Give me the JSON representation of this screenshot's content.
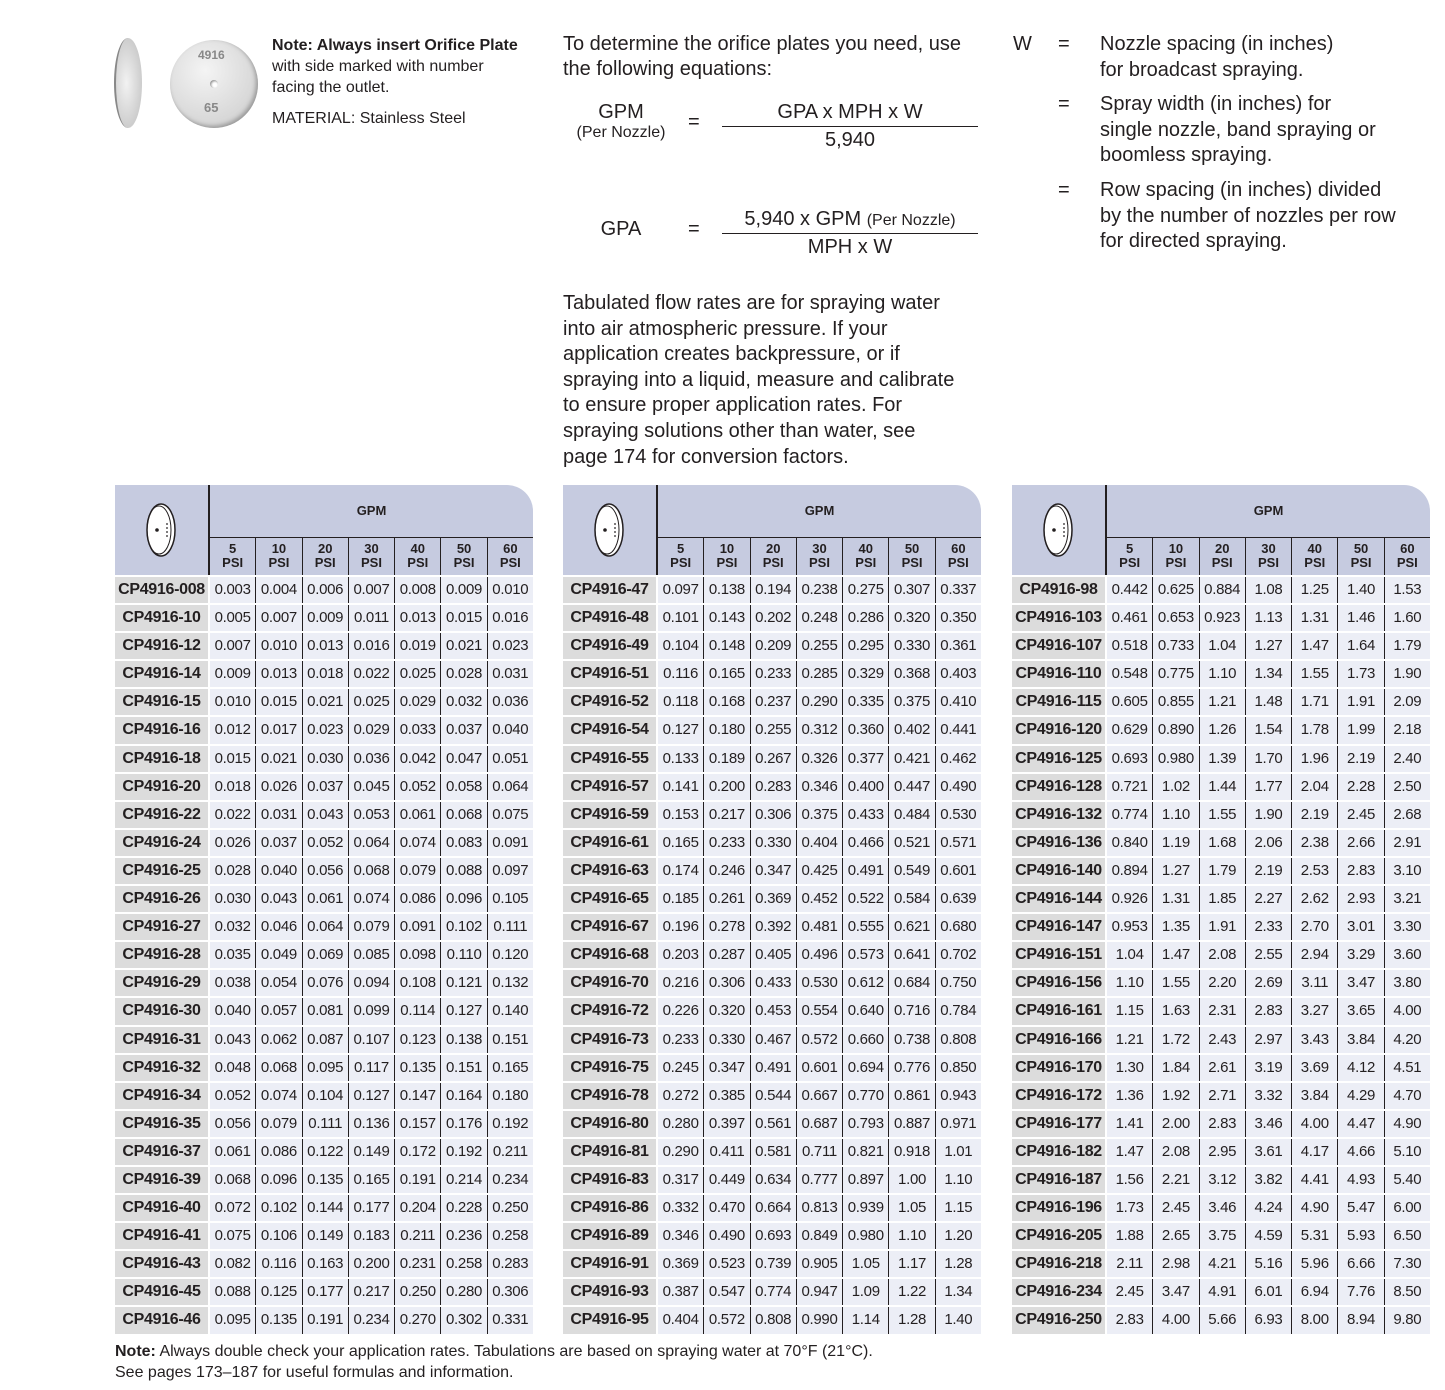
{
  "note": {
    "bold": "Note: Always insert Orifice Plate",
    "rest": " with side marked with number facing the outlet.",
    "material": "MATERIAL: Stainless Steel"
  },
  "plate_image": {
    "marking_top": "4916",
    "marking_bottom": "65"
  },
  "intro": "To determine the orifice plates you need, use the following equations:",
  "equations": {
    "gpm": {
      "lhs": "GPM",
      "lhs_sub": "(Per Nozzle)",
      "eq": "=",
      "numerator": "GPA x MPH x W",
      "denominator": "5,940"
    },
    "gpa": {
      "lhs": "GPA",
      "eq": "=",
      "numerator": "5,940 x GPM",
      "numerator_sub": "(Per Nozzle)",
      "denominator": "MPH x W"
    }
  },
  "w_definitions": {
    "symbol": "W",
    "items": [
      {
        "eq": "=",
        "text": "Nozzle spacing (in inches) for broadcast spraying."
      },
      {
        "eq": "=",
        "text": "Spray width (in inches) for single nozzle, band spraying or boomless spraying."
      },
      {
        "eq": "=",
        "text": "Row spacing (in inches) divided by the number of nozzles per row for directed spraying."
      }
    ]
  },
  "paragraph": "Tabulated flow rates are for spraying water into air atmospheric pressure. If your application creates backpressure, or if spraying into a liquid, measure and calibrate to ensure proper application rates. For spraying solutions other than water, see page 174 for conversion factors.",
  "colors": {
    "header_bg": "#c6cbe0",
    "part_cell_bg": "#dcdcdc",
    "value_cell_bg": "#eceef6"
  },
  "table_header": {
    "gpm": "GPM",
    "psi_columns": [
      "5 PSI",
      "10 PSI",
      "20 PSI",
      "30 PSI",
      "40 PSI",
      "50 PSI",
      "60 PSI"
    ],
    "icon": "orifice-plate-icon"
  },
  "tables": [
    {
      "rows": [
        [
          "CP4916-008",
          "0.003",
          "0.004",
          "0.006",
          "0.007",
          "0.008",
          "0.009",
          "0.010"
        ],
        [
          "CP4916-10",
          "0.005",
          "0.007",
          "0.009",
          "0.011",
          "0.013",
          "0.015",
          "0.016"
        ],
        [
          "CP4916-12",
          "0.007",
          "0.010",
          "0.013",
          "0.016",
          "0.019",
          "0.021",
          "0.023"
        ],
        [
          "CP4916-14",
          "0.009",
          "0.013",
          "0.018",
          "0.022",
          "0.025",
          "0.028",
          "0.031"
        ],
        [
          "CP4916-15",
          "0.010",
          "0.015",
          "0.021",
          "0.025",
          "0.029",
          "0.032",
          "0.036"
        ],
        [
          "CP4916-16",
          "0.012",
          "0.017",
          "0.023",
          "0.029",
          "0.033",
          "0.037",
          "0.040"
        ],
        [
          "CP4916-18",
          "0.015",
          "0.021",
          "0.030",
          "0.036",
          "0.042",
          "0.047",
          "0.051"
        ],
        [
          "CP4916-20",
          "0.018",
          "0.026",
          "0.037",
          "0.045",
          "0.052",
          "0.058",
          "0.064"
        ],
        [
          "CP4916-22",
          "0.022",
          "0.031",
          "0.043",
          "0.053",
          "0.061",
          "0.068",
          "0.075"
        ],
        [
          "CP4916-24",
          "0.026",
          "0.037",
          "0.052",
          "0.064",
          "0.074",
          "0.083",
          "0.091"
        ],
        [
          "CP4916-25",
          "0.028",
          "0.040",
          "0.056",
          "0.068",
          "0.079",
          "0.088",
          "0.097"
        ],
        [
          "CP4916-26",
          "0.030",
          "0.043",
          "0.061",
          "0.074",
          "0.086",
          "0.096",
          "0.105"
        ],
        [
          "CP4916-27",
          "0.032",
          "0.046",
          "0.064",
          "0.079",
          "0.091",
          "0.102",
          "0.111"
        ],
        [
          "CP4916-28",
          "0.035",
          "0.049",
          "0.069",
          "0.085",
          "0.098",
          "0.110",
          "0.120"
        ],
        [
          "CP4916-29",
          "0.038",
          "0.054",
          "0.076",
          "0.094",
          "0.108",
          "0.121",
          "0.132"
        ],
        [
          "CP4916-30",
          "0.040",
          "0.057",
          "0.081",
          "0.099",
          "0.114",
          "0.127",
          "0.140"
        ],
        [
          "CP4916-31",
          "0.043",
          "0.062",
          "0.087",
          "0.107",
          "0.123",
          "0.138",
          "0.151"
        ],
        [
          "CP4916-32",
          "0.048",
          "0.068",
          "0.095",
          "0.117",
          "0.135",
          "0.151",
          "0.165"
        ],
        [
          "CP4916-34",
          "0.052",
          "0.074",
          "0.104",
          "0.127",
          "0.147",
          "0.164",
          "0.180"
        ],
        [
          "CP4916-35",
          "0.056",
          "0.079",
          "0.111",
          "0.136",
          "0.157",
          "0.176",
          "0.192"
        ],
        [
          "CP4916-37",
          "0.061",
          "0.086",
          "0.122",
          "0.149",
          "0.172",
          "0.192",
          "0.211"
        ],
        [
          "CP4916-39",
          "0.068",
          "0.096",
          "0.135",
          "0.165",
          "0.191",
          "0.214",
          "0.234"
        ],
        [
          "CP4916-40",
          "0.072",
          "0.102",
          "0.144",
          "0.177",
          "0.204",
          "0.228",
          "0.250"
        ],
        [
          "CP4916-41",
          "0.075",
          "0.106",
          "0.149",
          "0.183",
          "0.211",
          "0.236",
          "0.258"
        ],
        [
          "CP4916-43",
          "0.082",
          "0.116",
          "0.163",
          "0.200",
          "0.231",
          "0.258",
          "0.283"
        ],
        [
          "CP4916-45",
          "0.088",
          "0.125",
          "0.177",
          "0.217",
          "0.250",
          "0.280",
          "0.306"
        ],
        [
          "CP4916-46",
          "0.095",
          "0.135",
          "0.191",
          "0.234",
          "0.270",
          "0.302",
          "0.331"
        ]
      ]
    },
    {
      "rows": [
        [
          "CP4916-47",
          "0.097",
          "0.138",
          "0.194",
          "0.238",
          "0.275",
          "0.307",
          "0.337"
        ],
        [
          "CP4916-48",
          "0.101",
          "0.143",
          "0.202",
          "0.248",
          "0.286",
          "0.320",
          "0.350"
        ],
        [
          "CP4916-49",
          "0.104",
          "0.148",
          "0.209",
          "0.255",
          "0.295",
          "0.330",
          "0.361"
        ],
        [
          "CP4916-51",
          "0.116",
          "0.165",
          "0.233",
          "0.285",
          "0.329",
          "0.368",
          "0.403"
        ],
        [
          "CP4916-52",
          "0.118",
          "0.168",
          "0.237",
          "0.290",
          "0.335",
          "0.375",
          "0.410"
        ],
        [
          "CP4916-54",
          "0.127",
          "0.180",
          "0.255",
          "0.312",
          "0.360",
          "0.402",
          "0.441"
        ],
        [
          "CP4916-55",
          "0.133",
          "0.189",
          "0.267",
          "0.326",
          "0.377",
          "0.421",
          "0.462"
        ],
        [
          "CP4916-57",
          "0.141",
          "0.200",
          "0.283",
          "0.346",
          "0.400",
          "0.447",
          "0.490"
        ],
        [
          "CP4916-59",
          "0.153",
          "0.217",
          "0.306",
          "0.375",
          "0.433",
          "0.484",
          "0.530"
        ],
        [
          "CP4916-61",
          "0.165",
          "0.233",
          "0.330",
          "0.404",
          "0.466",
          "0.521",
          "0.571"
        ],
        [
          "CP4916-63",
          "0.174",
          "0.246",
          "0.347",
          "0.425",
          "0.491",
          "0.549",
          "0.601"
        ],
        [
          "CP4916-65",
          "0.185",
          "0.261",
          "0.369",
          "0.452",
          "0.522",
          "0.584",
          "0.639"
        ],
        [
          "CP4916-67",
          "0.196",
          "0.278",
          "0.392",
          "0.481",
          "0.555",
          "0.621",
          "0.680"
        ],
        [
          "CP4916-68",
          "0.203",
          "0.287",
          "0.405",
          "0.496",
          "0.573",
          "0.641",
          "0.702"
        ],
        [
          "CP4916-70",
          "0.216",
          "0.306",
          "0.433",
          "0.530",
          "0.612",
          "0.684",
          "0.750"
        ],
        [
          "CP4916-72",
          "0.226",
          "0.320",
          "0.453",
          "0.554",
          "0.640",
          "0.716",
          "0.784"
        ],
        [
          "CP4916-73",
          "0.233",
          "0.330",
          "0.467",
          "0.572",
          "0.660",
          "0.738",
          "0.808"
        ],
        [
          "CP4916-75",
          "0.245",
          "0.347",
          "0.491",
          "0.601",
          "0.694",
          "0.776",
          "0.850"
        ],
        [
          "CP4916-78",
          "0.272",
          "0.385",
          "0.544",
          "0.667",
          "0.770",
          "0.861",
          "0.943"
        ],
        [
          "CP4916-80",
          "0.280",
          "0.397",
          "0.561",
          "0.687",
          "0.793",
          "0.887",
          "0.971"
        ],
        [
          "CP4916-81",
          "0.290",
          "0.411",
          "0.581",
          "0.711",
          "0.821",
          "0.918",
          "1.01"
        ],
        [
          "CP4916-83",
          "0.317",
          "0.449",
          "0.634",
          "0.777",
          "0.897",
          "1.00",
          "1.10"
        ],
        [
          "CP4916-86",
          "0.332",
          "0.470",
          "0.664",
          "0.813",
          "0.939",
          "1.05",
          "1.15"
        ],
        [
          "CP4916-89",
          "0.346",
          "0.490",
          "0.693",
          "0.849",
          "0.980",
          "1.10",
          "1.20"
        ],
        [
          "CP4916-91",
          "0.369",
          "0.523",
          "0.739",
          "0.905",
          "1.05",
          "1.17",
          "1.28"
        ],
        [
          "CP4916-93",
          "0.387",
          "0.547",
          "0.774",
          "0.947",
          "1.09",
          "1.22",
          "1.34"
        ],
        [
          "CP4916-95",
          "0.404",
          "0.572",
          "0.808",
          "0.990",
          "1.14",
          "1.28",
          "1.40"
        ]
      ]
    },
    {
      "rows": [
        [
          "CP4916-98",
          "0.442",
          "0.625",
          "0.884",
          "1.08",
          "1.25",
          "1.40",
          "1.53"
        ],
        [
          "CP4916-103",
          "0.461",
          "0.653",
          "0.923",
          "1.13",
          "1.31",
          "1.46",
          "1.60"
        ],
        [
          "CP4916-107",
          "0.518",
          "0.733",
          "1.04",
          "1.27",
          "1.47",
          "1.64",
          "1.79"
        ],
        [
          "CP4916-110",
          "0.548",
          "0.775",
          "1.10",
          "1.34",
          "1.55",
          "1.73",
          "1.90"
        ],
        [
          "CP4916-115",
          "0.605",
          "0.855",
          "1.21",
          "1.48",
          "1.71",
          "1.91",
          "2.09"
        ],
        [
          "CP4916-120",
          "0.629",
          "0.890",
          "1.26",
          "1.54",
          "1.78",
          "1.99",
          "2.18"
        ],
        [
          "CP4916-125",
          "0.693",
          "0.980",
          "1.39",
          "1.70",
          "1.96",
          "2.19",
          "2.40"
        ],
        [
          "CP4916-128",
          "0.721",
          "1.02",
          "1.44",
          "1.77",
          "2.04",
          "2.28",
          "2.50"
        ],
        [
          "CP4916-132",
          "0.774",
          "1.10",
          "1.55",
          "1.90",
          "2.19",
          "2.45",
          "2.68"
        ],
        [
          "CP4916-136",
          "0.840",
          "1.19",
          "1.68",
          "2.06",
          "2.38",
          "2.66",
          "2.91"
        ],
        [
          "CP4916-140",
          "0.894",
          "1.27",
          "1.79",
          "2.19",
          "2.53",
          "2.83",
          "3.10"
        ],
        [
          "CP4916-144",
          "0.926",
          "1.31",
          "1.85",
          "2.27",
          "2.62",
          "2.93",
          "3.21"
        ],
        [
          "CP4916-147",
          "0.953",
          "1.35",
          "1.91",
          "2.33",
          "2.70",
          "3.01",
          "3.30"
        ],
        [
          "CP4916-151",
          "1.04",
          "1.47",
          "2.08",
          "2.55",
          "2.94",
          "3.29",
          "3.60"
        ],
        [
          "CP4916-156",
          "1.10",
          "1.55",
          "2.20",
          "2.69",
          "3.11",
          "3.47",
          "3.80"
        ],
        [
          "CP4916-161",
          "1.15",
          "1.63",
          "2.31",
          "2.83",
          "3.27",
          "3.65",
          "4.00"
        ],
        [
          "CP4916-166",
          "1.21",
          "1.72",
          "2.43",
          "2.97",
          "3.43",
          "3.84",
          "4.20"
        ],
        [
          "CP4916-170",
          "1.30",
          "1.84",
          "2.61",
          "3.19",
          "3.69",
          "4.12",
          "4.51"
        ],
        [
          "CP4916-172",
          "1.36",
          "1.92",
          "2.71",
          "3.32",
          "3.84",
          "4.29",
          "4.70"
        ],
        [
          "CP4916-177",
          "1.41",
          "2.00",
          "2.83",
          "3.46",
          "4.00",
          "4.47",
          "4.90"
        ],
        [
          "CP4916-182",
          "1.47",
          "2.08",
          "2.95",
          "3.61",
          "4.17",
          "4.66",
          "5.10"
        ],
        [
          "CP4916-187",
          "1.56",
          "2.21",
          "3.12",
          "3.82",
          "4.41",
          "4.93",
          "5.40"
        ],
        [
          "CP4916-196",
          "1.73",
          "2.45",
          "3.46",
          "4.24",
          "4.90",
          "5.47",
          "6.00"
        ],
        [
          "CP4916-205",
          "1.88",
          "2.65",
          "3.75",
          "4.59",
          "5.31",
          "5.93",
          "6.50"
        ],
        [
          "CP4916-218",
          "2.11",
          "2.98",
          "4.21",
          "5.16",
          "5.96",
          "6.66",
          "7.30"
        ],
        [
          "CP4916-234",
          "2.45",
          "3.47",
          "4.91",
          "6.01",
          "6.94",
          "7.76",
          "8.50"
        ],
        [
          "CP4916-250",
          "2.83",
          "4.00",
          "5.66",
          "6.93",
          "8.00",
          "8.94",
          "9.80"
        ]
      ]
    }
  ],
  "footer": {
    "bold": "Note:",
    "line1": " Always double check your application rates. Tabulations are based on spraying water at 70°F (21°C).",
    "line2": "See pages 173–187 for useful formulas and information."
  }
}
